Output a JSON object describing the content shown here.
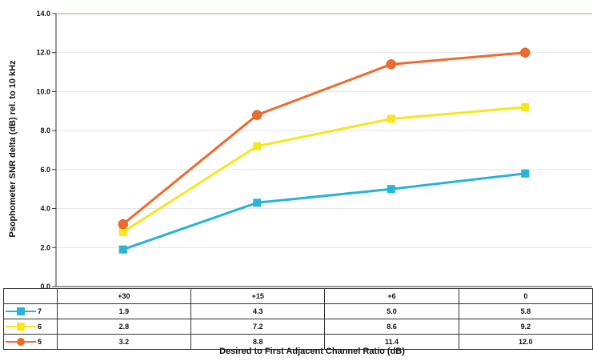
{
  "chart_data": {
    "type": "line",
    "ylabel": "Psophometer SNR delta (dB) rel. to 10 kHz",
    "xlabel": "Desired to First Adjacent Channel Ratio (dB)",
    "categories": [
      "+30",
      "+15",
      "+6",
      "0"
    ],
    "ylim": [
      0,
      14
    ],
    "yticks": [
      "0.0",
      "2.0",
      "4.0",
      "6.0",
      "8.0",
      "10.0",
      "12.0",
      "14.0"
    ],
    "grid": true,
    "series": [
      {
        "name": "7",
        "color": "#27b4d8",
        "marker": "square",
        "values": [
          1.9,
          4.3,
          5.0,
          5.8
        ],
        "labels": [
          "1.9",
          "4.3",
          "5.0",
          "5.8"
        ]
      },
      {
        "name": "6",
        "color": "#f5e61e",
        "marker": "square",
        "values": [
          2.8,
          7.2,
          8.6,
          9.2
        ],
        "labels": [
          "2.8",
          "7.2",
          "8.6",
          "9.2"
        ]
      },
      {
        "name": "5",
        "color": "#ec6b2d",
        "marker": "circle",
        "values": [
          3.2,
          8.8,
          11.4,
          12.0
        ],
        "labels": [
          "3.2",
          "8.8",
          "11.4",
          "12.0"
        ]
      }
    ]
  }
}
